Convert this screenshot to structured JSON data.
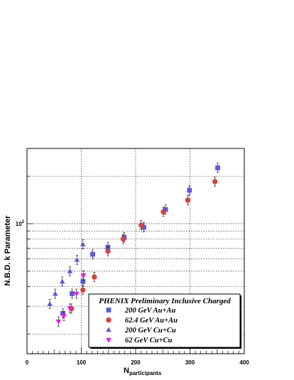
{
  "chart_data": {
    "type": "scatter",
    "title": "",
    "xlabel": "N",
    "xlabel_subscript": "participants",
    "ylabel": "N.B.D. k Parameter",
    "xlim": [
      0,
      400
    ],
    "ylim": [
      15,
      300
    ],
    "yscale": "log",
    "xticks": [
      "0",
      "100",
      "200",
      "300",
      "400"
    ],
    "yticks": [
      {
        "label": "10",
        "exp": "2",
        "value": 100
      }
    ],
    "grid": true,
    "legend": {
      "placement": "lower-right",
      "title": "PHENIX Preliminary Inclusive Charged"
    },
    "series": [
      {
        "name": "200 GeV Au+Au",
        "marker": "square",
        "color": "#5a5ae0",
        "points": [
          [
            66,
            27
          ],
          [
            83,
            36
          ],
          [
            103,
            43
          ],
          [
            121,
            64
          ],
          [
            149,
            71
          ],
          [
            179,
            82
          ],
          [
            215,
            95
          ],
          [
            255,
            123
          ],
          [
            299,
            163
          ],
          [
            351,
            226
          ]
        ]
      },
      {
        "name": "62.4 GeV Au+Au",
        "marker": "circle",
        "color": "#d8443c",
        "points": [
          [
            82,
            29
          ],
          [
            103,
            38
          ],
          [
            124,
            46
          ],
          [
            149,
            67
          ],
          [
            177,
            80
          ],
          [
            210,
            98
          ],
          [
            251,
            119
          ],
          [
            296,
            141
          ],
          [
            346,
            185
          ]
        ]
      },
      {
        "name": "200 GeV Cu+Cu",
        "marker": "triangle-up",
        "color": "#5a5ae0",
        "points": [
          [
            42,
            31
          ],
          [
            52,
            36
          ],
          [
            65,
            43
          ],
          [
            79,
            50
          ],
          [
            92,
            59
          ],
          [
            103,
            74
          ]
        ]
      },
      {
        "name": "62 GeV Cu+Cu",
        "marker": "triangle-down",
        "color": "#ee14ee",
        "points": [
          [
            58,
            24
          ],
          [
            68,
            26
          ],
          [
            79,
            29
          ],
          [
            91,
            36
          ],
          [
            104,
            47
          ]
        ]
      }
    ]
  }
}
